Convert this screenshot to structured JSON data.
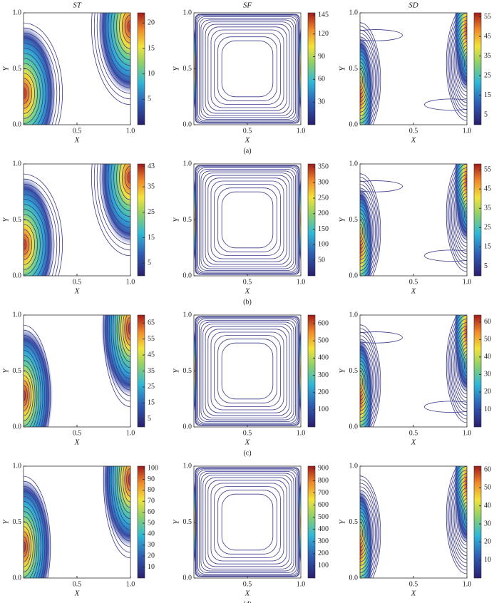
{
  "column_titles": [
    "ST",
    "SF",
    "SD"
  ],
  "captions": [
    "(a)",
    "(b)",
    "(c)",
    "(d)"
  ],
  "chart_data": [
    {
      "type": "contour",
      "xlabel": "X",
      "ylabel": "Y",
      "xlim": [
        0,
        1
      ],
      "ylim": [
        0,
        1
      ],
      "xticks": [
        {
          "value": 0.5,
          "label": "0.5"
        },
        {
          "value": 1,
          "label": "1.0"
        }
      ],
      "yticks": [
        {
          "value": 0,
          "label": "0.0"
        },
        {
          "value": 0.5,
          "label": "0.5"
        },
        {
          "value": 1,
          "label": "1.0"
        }
      ],
      "clim": [
        0,
        22
      ],
      "cticks": [
        5,
        10,
        15,
        20
      ]
    },
    {
      "type": "contour",
      "xlabel": "X",
      "ylabel": "Y",
      "xlim": [
        0,
        1
      ],
      "ylim": [
        0,
        1
      ],
      "xticks": [
        {
          "value": 0.5,
          "label": "0.5"
        },
        {
          "value": 1,
          "label": "1.0"
        }
      ],
      "yticks": [
        {
          "value": 0,
          "label": "0.0"
        },
        {
          "value": 0.5,
          "label": "0.5"
        },
        {
          "value": 1,
          "label": "1.0"
        }
      ],
      "clim": [
        0,
        148
      ],
      "cticks": [
        30,
        60,
        90,
        120,
        145
      ]
    },
    {
      "type": "contour",
      "xlabel": "X",
      "ylabel": "Y",
      "xlim": [
        0,
        1
      ],
      "ylim": [
        0,
        1
      ],
      "xticks": [
        {
          "value": 0.5,
          "label": "0.5"
        },
        {
          "value": 1,
          "label": "1.0"
        }
      ],
      "yticks": [
        {
          "value": 0,
          "label": "0.0"
        },
        {
          "value": 0.5,
          "label": "0.5"
        },
        {
          "value": 1,
          "label": "1.0"
        }
      ],
      "clim": [
        0,
        57
      ],
      "cticks": [
        5,
        15,
        25,
        35,
        45,
        55
      ]
    },
    {
      "type": "contour",
      "xlabel": "X",
      "ylabel": "Y",
      "xlim": [
        0,
        1
      ],
      "ylim": [
        0,
        1
      ],
      "xticks": [
        {
          "value": 0.5,
          "label": "0.5"
        },
        {
          "value": 1,
          "label": "1.0"
        }
      ],
      "yticks": [
        {
          "value": 0,
          "label": "0.0"
        },
        {
          "value": 0.5,
          "label": "0.5"
        },
        {
          "value": 1,
          "label": "1.0"
        }
      ],
      "clim": [
        0,
        44
      ],
      "cticks": [
        5,
        15,
        25,
        35,
        43
      ]
    },
    {
      "type": "contour",
      "xlabel": "X",
      "ylabel": "Y",
      "xlim": [
        0,
        1
      ],
      "ylim": [
        0,
        1
      ],
      "xticks": [
        {
          "value": 0.5,
          "label": "0.5"
        },
        {
          "value": 1,
          "label": "1.0"
        }
      ],
      "yticks": [
        {
          "value": 0,
          "label": "0.0"
        },
        {
          "value": 0.5,
          "label": "0.5"
        },
        {
          "value": 1,
          "label": "1.0"
        }
      ],
      "clim": [
        0,
        360
      ],
      "cticks": [
        50,
        100,
        150,
        200,
        250,
        300,
        350
      ]
    },
    {
      "type": "contour",
      "xlabel": "X",
      "ylabel": "Y",
      "xlim": [
        0,
        1
      ],
      "ylim": [
        0,
        1
      ],
      "xticks": [
        {
          "value": 0.5,
          "label": "0.5"
        },
        {
          "value": 1,
          "label": "1.0"
        }
      ],
      "yticks": [
        {
          "value": 0,
          "label": "0.0"
        },
        {
          "value": 0.5,
          "label": "0.5"
        },
        {
          "value": 1,
          "label": "1.0"
        }
      ],
      "clim": [
        0,
        58
      ],
      "cticks": [
        5,
        15,
        25,
        35,
        45,
        55
      ]
    },
    {
      "type": "contour",
      "xlabel": "X",
      "ylabel": "Y",
      "xlim": [
        0,
        1
      ],
      "ylim": [
        0,
        1
      ],
      "xticks": [
        {
          "value": 0.5,
          "label": "0.5"
        },
        {
          "value": 1,
          "label": "1.0"
        }
      ],
      "yticks": [
        {
          "value": 0,
          "label": "0.0"
        },
        {
          "value": 0.5,
          "label": "0.5"
        },
        {
          "value": 1,
          "label": "1.0"
        }
      ],
      "clim": [
        0,
        70
      ],
      "cticks": [
        5,
        15,
        25,
        35,
        45,
        55,
        65
      ]
    },
    {
      "type": "contour",
      "xlabel": "X",
      "ylabel": "Y",
      "xlim": [
        0,
        1
      ],
      "ylim": [
        0,
        1
      ],
      "xticks": [
        {
          "value": 0.5,
          "label": "0.5"
        },
        {
          "value": 1,
          "label": "1.0"
        }
      ],
      "yticks": [
        {
          "value": 0,
          "label": "0.0"
        },
        {
          "value": 0.5,
          "label": "0.5"
        },
        {
          "value": 1,
          "label": "1.0"
        }
      ],
      "clim": [
        0,
        650
      ],
      "cticks": [
        100,
        200,
        300,
        400,
        500,
        600
      ]
    },
    {
      "type": "contour",
      "xlabel": "X",
      "ylabel": "Y",
      "xlim": [
        0,
        1
      ],
      "ylim": [
        0,
        1
      ],
      "xticks": [
        {
          "value": 0.5,
          "label": "0.5"
        },
        {
          "value": 1,
          "label": "1.0"
        }
      ],
      "yticks": [
        {
          "value": 0,
          "label": "0.0"
        },
        {
          "value": 0.5,
          "label": "0.5"
        },
        {
          "value": 1,
          "label": "1.0"
        }
      ],
      "clim": [
        0,
        64
      ],
      "cticks": [
        10,
        20,
        30,
        40,
        50,
        60
      ]
    },
    {
      "type": "contour",
      "xlabel": "X",
      "ylabel": "Y",
      "xlim": [
        0,
        1
      ],
      "ylim": [
        0,
        1
      ],
      "xticks": [
        {
          "value": 0.5,
          "label": "0.5"
        },
        {
          "value": 1,
          "label": "1.0"
        }
      ],
      "yticks": [
        {
          "value": 0,
          "label": "0.0"
        },
        {
          "value": 0.5,
          "label": "0.5"
        },
        {
          "value": 1,
          "label": "1.0"
        }
      ],
      "clim": [
        0,
        102
      ],
      "cticks": [
        10,
        20,
        30,
        40,
        50,
        60,
        70,
        80,
        90,
        100
      ]
    },
    {
      "type": "contour",
      "xlabel": "X",
      "ylabel": "Y",
      "xlim": [
        0,
        1
      ],
      "ylim": [
        0,
        1
      ],
      "xticks": [
        {
          "value": 0.5,
          "label": "0.5"
        },
        {
          "value": 1,
          "label": "1.0"
        }
      ],
      "yticks": [
        {
          "value": 0,
          "label": "0.0"
        },
        {
          "value": 0.5,
          "label": "0.5"
        },
        {
          "value": 1,
          "label": "1.0"
        }
      ],
      "clim": [
        0,
        920
      ],
      "cticks": [
        100,
        200,
        300,
        400,
        500,
        600,
        700,
        800,
        900
      ]
    },
    {
      "type": "contour",
      "xlabel": "X",
      "ylabel": "Y",
      "xlim": [
        0,
        1
      ],
      "ylim": [
        0,
        1
      ],
      "xticks": [
        {
          "value": 0.5,
          "label": "0.5"
        },
        {
          "value": 1,
          "label": "1.0"
        }
      ],
      "yticks": [
        {
          "value": 0,
          "label": "0.0"
        },
        {
          "value": 0.5,
          "label": "0.5"
        },
        {
          "value": 1,
          "label": "1.0"
        }
      ],
      "clim": [
        0,
        62
      ],
      "cticks": [
        10,
        20,
        30,
        40,
        50,
        60
      ]
    }
  ]
}
